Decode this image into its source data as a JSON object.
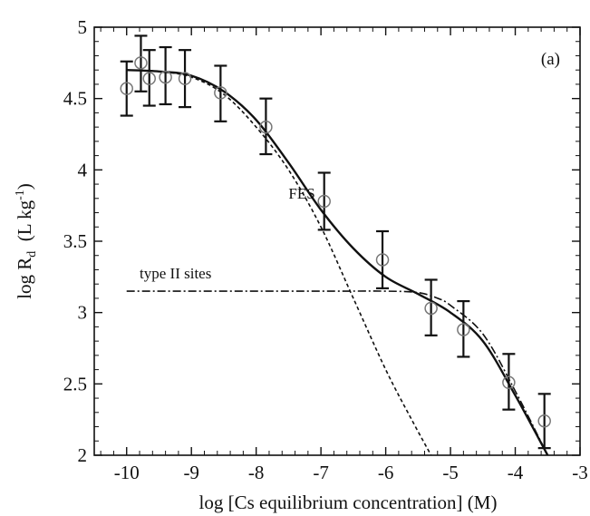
{
  "chart_data": {
    "type": "scatter",
    "title": "",
    "panel_label": "(a)",
    "xlabel": "log [Cs equilibrium concentration] (M)",
    "ylabel": {
      "base": "log R",
      "subscript": "d",
      "units_open": "  (L kg",
      "units_superscript": "-1",
      "units_close": ")"
    },
    "xlim": [
      -10.5,
      -3
    ],
    "ylim": [
      2,
      5
    ],
    "x_ticks": [
      "-10",
      "-9",
      "-8",
      "-7",
      "-6",
      "-5",
      "-4",
      "-3"
    ],
    "y_ticks": [
      "2",
      "2.5",
      "3",
      "3.5",
      "4",
      "4.5",
      "5"
    ],
    "x_tick_values": [
      -10,
      -9,
      -8,
      -7,
      -6,
      -5,
      -4,
      -3
    ],
    "y_tick_values": [
      2,
      2.5,
      3,
      3.5,
      4,
      4.5,
      5
    ],
    "grid": false,
    "legend": "none",
    "annotations": [
      {
        "text": "FES",
        "x": -7.5,
        "y": 3.8
      },
      {
        "text": "type II sites",
        "x": -9.8,
        "y": 3.24
      }
    ],
    "series": [
      {
        "kind": "points",
        "marker": "open-circle",
        "points": [
          {
            "x": -10.0,
            "y": 4.57,
            "err_lo": 4.38,
            "err_hi": 4.76
          },
          {
            "x": -9.78,
            "y": 4.75,
            "err_lo": 4.55,
            "err_hi": 4.94
          },
          {
            "x": -9.65,
            "y": 4.64,
            "err_lo": 4.45,
            "err_hi": 4.84
          },
          {
            "x": -9.4,
            "y": 4.65,
            "err_lo": 4.46,
            "err_hi": 4.86
          },
          {
            "x": -9.1,
            "y": 4.64,
            "err_lo": 4.44,
            "err_hi": 4.84
          },
          {
            "x": -8.55,
            "y": 4.54,
            "err_lo": 4.34,
            "err_hi": 4.73
          },
          {
            "x": -7.85,
            "y": 4.3,
            "err_lo": 4.11,
            "err_hi": 4.5
          },
          {
            "x": -6.95,
            "y": 3.78,
            "err_lo": 3.58,
            "err_hi": 3.98
          },
          {
            "x": -6.05,
            "y": 3.37,
            "err_lo": 3.17,
            "err_hi": 3.57
          },
          {
            "x": -5.3,
            "y": 3.03,
            "err_lo": 2.84,
            "err_hi": 3.23
          },
          {
            "x": -4.8,
            "y": 2.88,
            "err_lo": 2.69,
            "err_hi": 3.08
          },
          {
            "x": -4.1,
            "y": 2.51,
            "err_lo": 2.32,
            "err_hi": 2.71
          },
          {
            "x": -3.55,
            "y": 2.24,
            "err_lo": 2.05,
            "err_hi": 2.43
          }
        ]
      },
      {
        "kind": "line",
        "style": "solid",
        "x": [
          -10.0,
          -9.5,
          -9.0,
          -8.5,
          -8.0,
          -7.5,
          -7.0,
          -6.5,
          -6.0,
          -5.5,
          -5.0,
          -4.5,
          -4.0,
          -3.5
        ],
        "y": [
          4.7,
          4.69,
          4.66,
          4.55,
          4.35,
          4.05,
          3.72,
          3.45,
          3.25,
          3.13,
          3.0,
          2.8,
          2.42,
          2.0
        ]
      },
      {
        "kind": "line",
        "style": "dashed",
        "x": [
          -10.0,
          -9.5,
          -9.0,
          -8.5,
          -8.0,
          -7.5,
          -7.0,
          -6.5,
          -6.0,
          -5.6,
          -5.3
        ],
        "y": [
          4.7,
          4.69,
          4.65,
          4.53,
          4.3,
          4.0,
          3.6,
          3.1,
          2.6,
          2.25,
          2.0
        ]
      },
      {
        "kind": "line",
        "style": "dash-dot",
        "x": [
          -10.0,
          -7.0,
          -6.0,
          -5.5,
          -5.2,
          -5.0,
          -4.5,
          -4.0,
          -3.5
        ],
        "y": [
          3.15,
          3.15,
          3.15,
          3.14,
          3.1,
          3.05,
          2.85,
          2.45,
          2.0
        ]
      }
    ]
  }
}
